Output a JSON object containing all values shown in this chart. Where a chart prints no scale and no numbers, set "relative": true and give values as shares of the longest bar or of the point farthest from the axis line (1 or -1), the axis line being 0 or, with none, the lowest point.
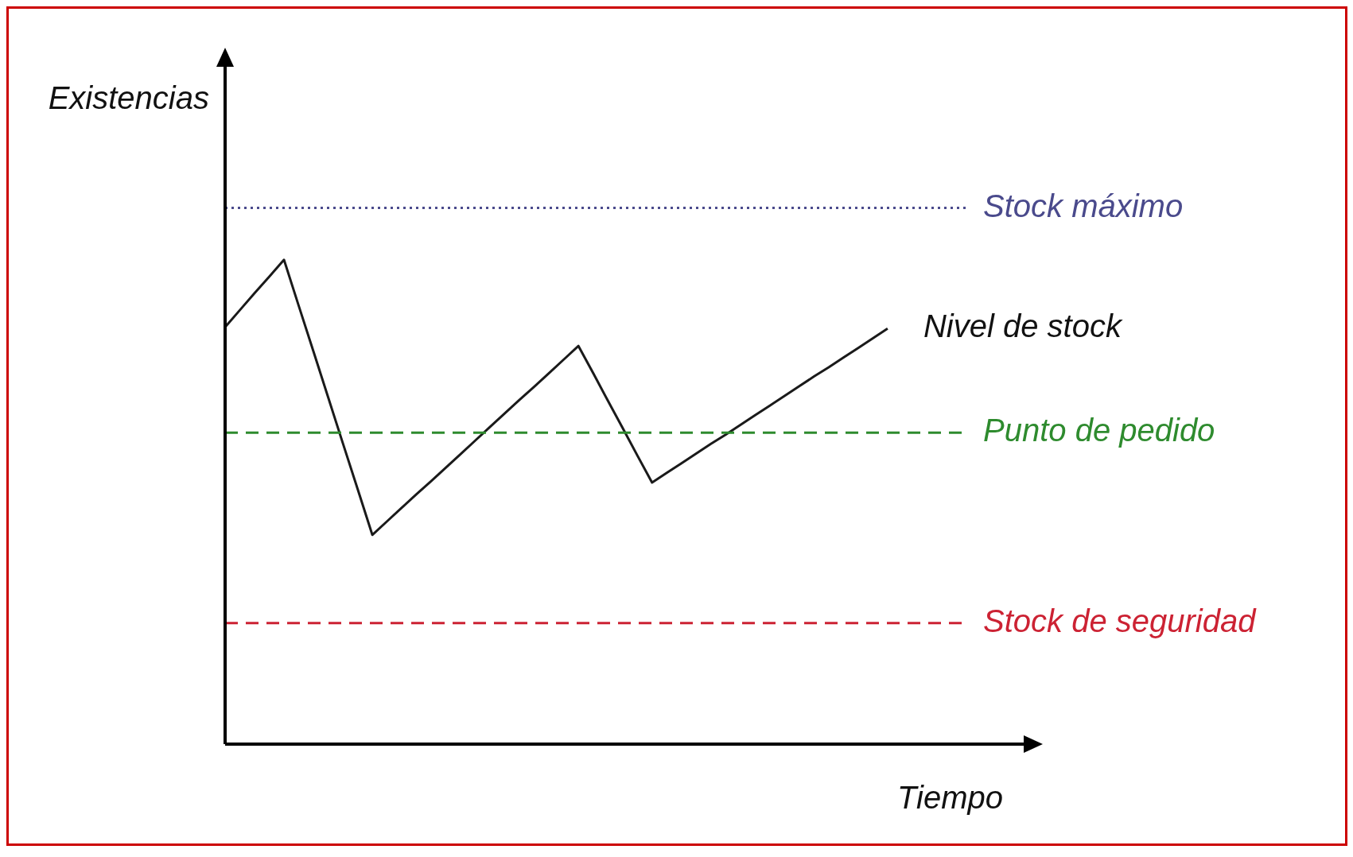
{
  "chart_data": {
    "type": "line",
    "relative": true,
    "xlabel": "Tiempo",
    "ylabel": "Existencias",
    "categories": [
      null,
      null,
      null,
      null,
      null,
      null,
      null,
      null,
      null,
      null,
      null,
      null,
      null,
      null,
      null,
      null,
      null,
      null,
      null,
      null,
      null,
      null,
      null,
      null,
      null,
      null,
      null,
      null,
      null,
      null,
      null,
      null,
      null,
      null,
      null,
      null,
      null,
      null,
      null,
      null,
      null,
      null,
      null,
      null,
      null,
      null,
      null,
      null,
      null,
      null,
      null,
      null,
      null,
      null,
      null,
      null
    ],
    "series": [
      {
        "name": "Nivel de stock",
        "color": "#1a1a1a",
        "values": [
          0.861,
          0.896,
          0.931,
          0.965,
          1,
          0.905,
          0.811,
          0.716,
          0.621,
          0.527,
          0.432,
          0.46,
          0.488,
          0.516,
          0.543,
          0.571,
          0.599,
          0.627,
          0.655,
          0.683,
          0.711,
          0.738,
          0.766,
          0.794,
          0.822,
          0.766,
          0.709,
          0.653,
          0.596,
          0.54,
          0.56,
          0.58,
          0.6,
          0.62,
          0.639,
          0.659,
          0.679,
          0.699,
          0.719,
          0.739,
          0.759,
          0.778,
          0.798,
          0.818,
          0.838,
          0.858,
          null,
          null,
          null,
          null,
          null,
          null,
          null,
          null,
          null,
          null
        ]
      }
    ],
    "ref_lines": [
      {
        "axis": "y",
        "value": 1.107,
        "label": "Stock máximo",
        "color": "#4a4a8c",
        "line_style": "dotted"
      },
      {
        "axis": "y",
        "value": 0.643,
        "label": "Punto de pedido",
        "color": "#2e8b2e",
        "line_style": "dashed"
      },
      {
        "axis": "y",
        "value": 0.25,
        "label": "Stock de seguridad",
        "color": "#cc2233",
        "line_style": "dashed"
      }
    ],
    "grid": false,
    "legend": false,
    "marker": "none",
    "line_style": "solid",
    "tick_labels": false
  }
}
